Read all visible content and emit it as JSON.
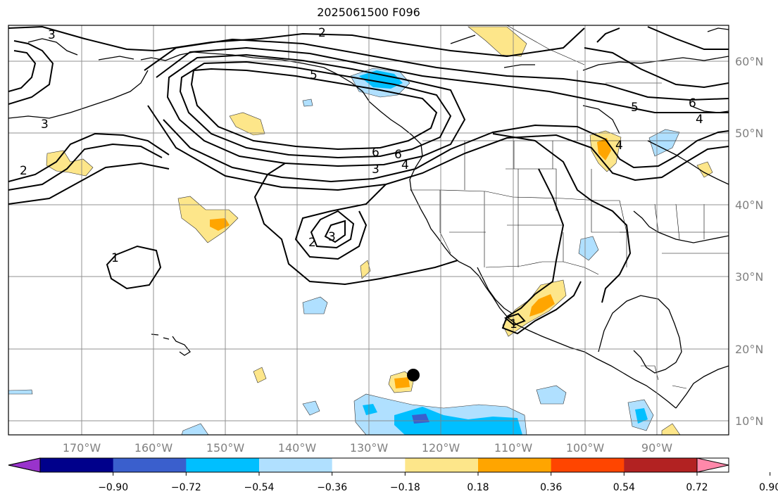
{
  "title": "2025061500 F096",
  "map": {
    "lon_labels": [
      "170°W",
      "160°W",
      "150°W",
      "140°W",
      "130°W",
      "120°W",
      "110°W",
      "100°W",
      "90°W"
    ],
    "lat_labels": [
      "10°N",
      "20°N",
      "30°N",
      "40°N",
      "50°N",
      "60°N"
    ],
    "contour_labels": [
      "2",
      "5",
      "6",
      "3",
      "6",
      "4",
      "2",
      "3",
      "2",
      "3",
      "1",
      "5",
      "6",
      "4",
      "4",
      "3",
      "1"
    ],
    "marker": "black-dot"
  },
  "colorbar": {
    "levels": [
      "−0.90",
      "−0.72",
      "−0.54",
      "−0.36",
      "−0.18",
      "0.18",
      "0.36",
      "0.54",
      "0.72",
      "0.90"
    ],
    "colors": [
      "#9933cc",
      "#00008b",
      "#3a5fcd",
      "#00bfff",
      "#b0e0ff",
      "#ffffff",
      "#fde68a",
      "#ffa500",
      "#ff4500",
      "#b22222",
      "#ff88aa"
    ]
  }
}
